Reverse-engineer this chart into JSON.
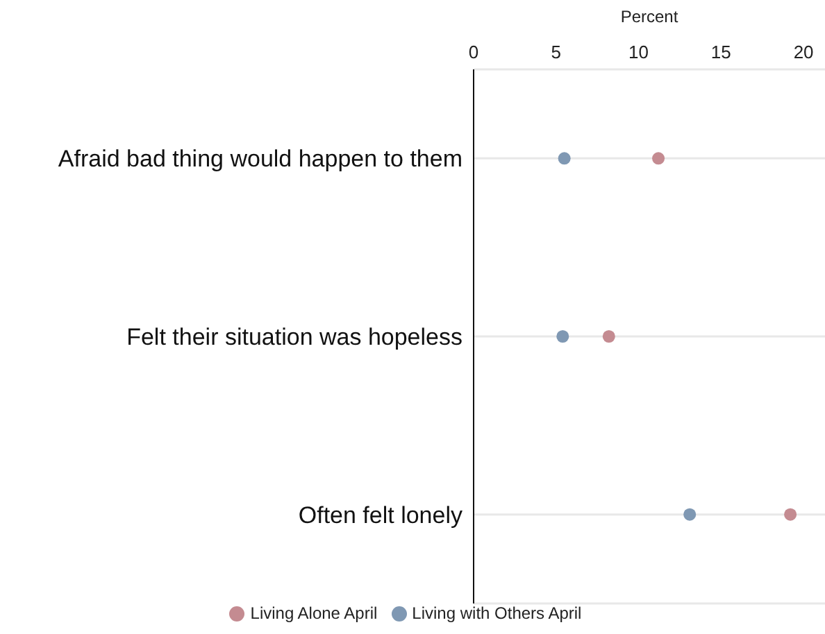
{
  "chart_data": {
    "type": "scatter",
    "orientation": "horizontal",
    "xlabel": "Percent",
    "categories": [
      "Afraid bad thing would happen to them",
      "Felt their situation was hopeless",
      "Often felt lonely"
    ],
    "series": [
      {
        "name": "Living with Others April",
        "color": "#7f98b3",
        "values": [
          5.5,
          5.4,
          13.1
        ]
      },
      {
        "name": "Living Alone April",
        "color": "#c48b91",
        "values": [
          11.2,
          8.2,
          19.2
        ]
      }
    ],
    "xlim": [
      0,
      21.3
    ],
    "xticks": [
      0,
      5,
      10,
      15,
      20
    ],
    "grid": "y",
    "legend": "bottom",
    "marker": "circle"
  }
}
